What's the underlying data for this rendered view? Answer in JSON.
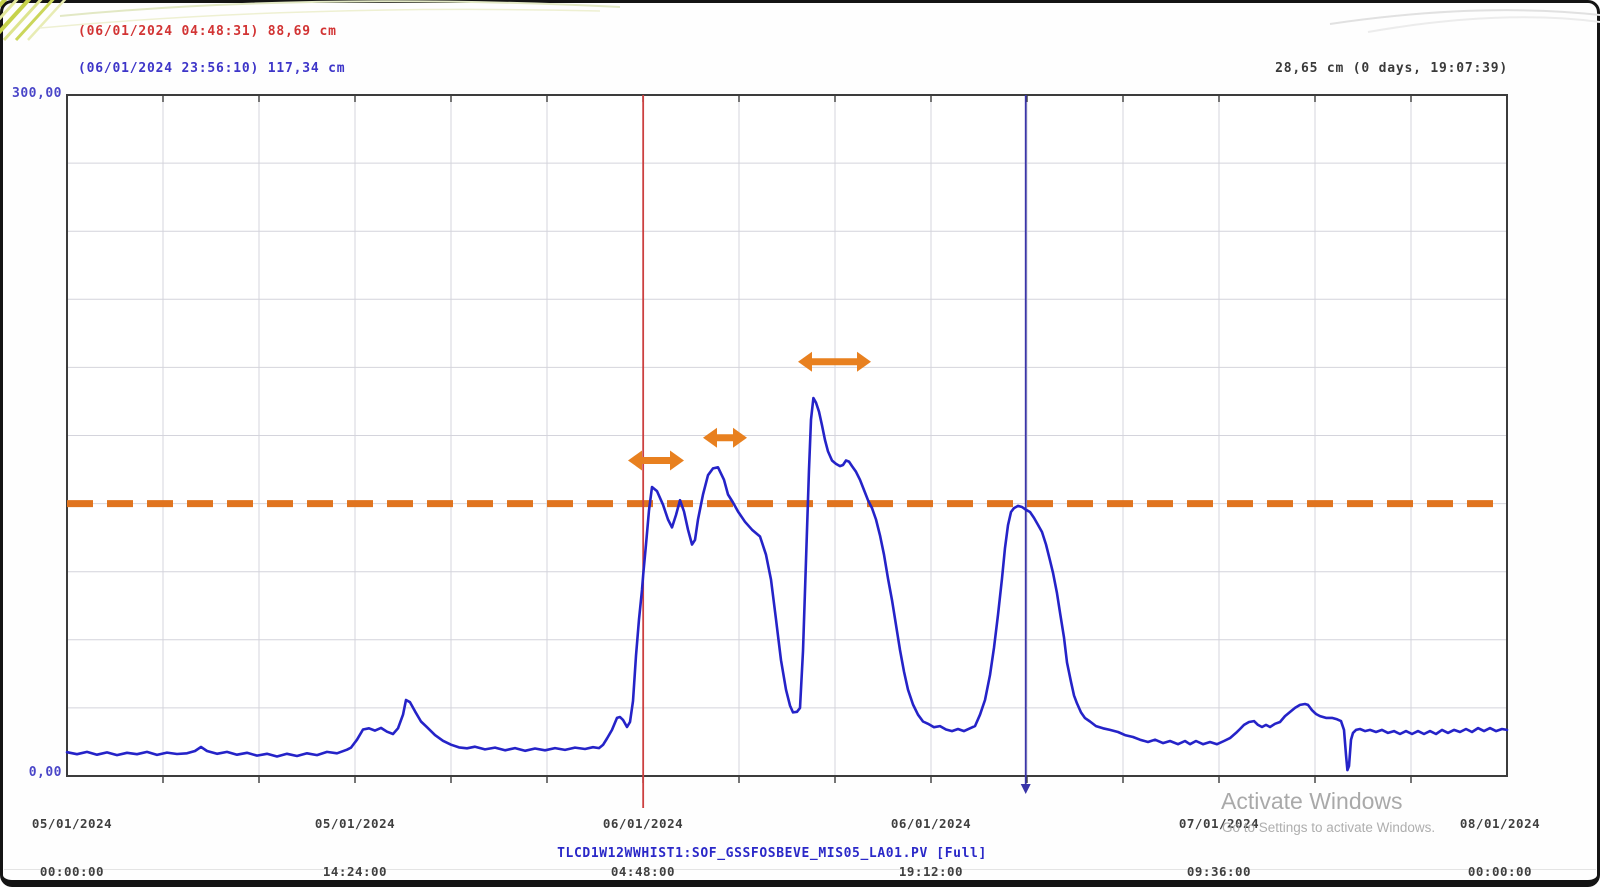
{
  "readouts": {
    "red_cursor": "(06/01/2024 04:48:31) 88,69 cm",
    "blue_cursor": "(06/01/2024 23:56:10) 117,34 cm",
    "delta": "28,65 cm (0 days, 19:07:39)"
  },
  "tag_label": "TLCD1W12WWHIST1:SOF_GSSFOSBEVE_MIS05_LA01.PV [Full]",
  "watermark": {
    "line1": "Activate Windows",
    "line2": "Go to Settings to activate Windows."
  },
  "chart_data": {
    "type": "line",
    "title": "",
    "xlabel": "",
    "ylabel": "cm",
    "y_axis": {
      "min": 0,
      "max": 300,
      "min_label": "0,00",
      "max_label": "300,00",
      "unit": "cm",
      "grid_step": 30
    },
    "x_axis": {
      "span_hours": 72,
      "start": "05/01/2024 00:00:00",
      "end": "08/01/2024 00:00:00",
      "tick_interval_hours": 14.4,
      "ticks": [
        {
          "date": "05/01/2024",
          "time": "00:00:00"
        },
        {
          "date": "05/01/2024",
          "time": "14:24:00"
        },
        {
          "date": "06/01/2024",
          "time": "04:48:00"
        },
        {
          "date": "06/01/2024",
          "time": "19:12:00"
        },
        {
          "date": "07/01/2024",
          "time": "09:36:00"
        },
        {
          "date": "08/01/2024",
          "time": "00:00:00"
        }
      ]
    },
    "grid": {
      "v_divisions": 15,
      "h_divisions": 10,
      "color": "#d4d4dc",
      "border_color": "#3c3c3c"
    },
    "threshold_line": {
      "value": 120,
      "color": "#e0741f",
      "style": "dashed"
    },
    "cursors": [
      {
        "name": "red-cursor",
        "timestamp": "06/01/2024 04:48:31",
        "time_hours": 28.8086,
        "value_cm": 88.69,
        "color": "#cc4040"
      },
      {
        "name": "blue-cursor",
        "timestamp": "06/01/2024 23:56:10",
        "time_hours": 47.9361,
        "value_cm": 117.34,
        "color": "#3a35a8"
      }
    ],
    "delta": {
      "value_cm": 28.65,
      "duration": "0 days, 19:07:39"
    },
    "arrows": [
      {
        "t_start": 28.05,
        "t_end": 30.85,
        "value": 139,
        "color": "#e8801f"
      },
      {
        "t_start": 31.8,
        "t_end": 34.0,
        "value": 149,
        "color": "#e8801f"
      },
      {
        "t_start": 36.55,
        "t_end": 40.2,
        "value": 182.5,
        "color": "#e8801f"
      }
    ],
    "series": [
      {
        "name": "SOF_GSSFOSBEVE_MIS05_LA01.PV",
        "color": "#2523c8",
        "points": [
          [
            0,
            10.5
          ],
          [
            0.5,
            9.6
          ],
          [
            1,
            10.6
          ],
          [
            1.5,
            9.4
          ],
          [
            2,
            10.4
          ],
          [
            2.5,
            9.2
          ],
          [
            3,
            10.2
          ],
          [
            3.5,
            9.6
          ],
          [
            4,
            10.6
          ],
          [
            4.5,
            9.3
          ],
          [
            5,
            10.3
          ],
          [
            5.5,
            9.7
          ],
          [
            6,
            10
          ],
          [
            6.4,
            11
          ],
          [
            6.7,
            12.8
          ],
          [
            7,
            11
          ],
          [
            7.5,
            9.8
          ],
          [
            8,
            10.6
          ],
          [
            8.5,
            9.4
          ],
          [
            9,
            10.2
          ],
          [
            9.5,
            9
          ],
          [
            10,
            9.8
          ],
          [
            10.5,
            8.6
          ],
          [
            11,
            9.8
          ],
          [
            11.5,
            8.8
          ],
          [
            12,
            10
          ],
          [
            12.5,
            9.2
          ],
          [
            13,
            10.6
          ],
          [
            13.5,
            10
          ],
          [
            14,
            11.6
          ],
          [
            14.2,
            12.5
          ],
          [
            14.5,
            16
          ],
          [
            14.8,
            20.5
          ],
          [
            15.1,
            21
          ],
          [
            15.4,
            20
          ],
          [
            15.7,
            21.2
          ],
          [
            16,
            19.5
          ],
          [
            16.3,
            18.5
          ],
          [
            16.55,
            21
          ],
          [
            16.8,
            27
          ],
          [
            16.95,
            33.5
          ],
          [
            17.15,
            32.5
          ],
          [
            17.4,
            28.5
          ],
          [
            17.7,
            24
          ],
          [
            18,
            21.5
          ],
          [
            18.4,
            18
          ],
          [
            18.8,
            15.5
          ],
          [
            19.2,
            13.8
          ],
          [
            19.6,
            12.6
          ],
          [
            20,
            12.2
          ],
          [
            20.4,
            12.9
          ],
          [
            20.9,
            11.7
          ],
          [
            21.4,
            12.5
          ],
          [
            21.9,
            11.3
          ],
          [
            22.4,
            12.3
          ],
          [
            22.9,
            11.1
          ],
          [
            23.4,
            12.1
          ],
          [
            23.9,
            11.3
          ],
          [
            24.4,
            12.3
          ],
          [
            24.9,
            11.5
          ],
          [
            25.4,
            12.5
          ],
          [
            25.9,
            11.9
          ],
          [
            26.3,
            12.7
          ],
          [
            26.6,
            12.3
          ],
          [
            26.8,
            13.7
          ],
          [
            27,
            16.5
          ],
          [
            27.25,
            20.3
          ],
          [
            27.5,
            25.6
          ],
          [
            27.65,
            26
          ],
          [
            27.8,
            24.7
          ],
          [
            28,
            21.6
          ],
          [
            28.15,
            23.8
          ],
          [
            28.3,
            33
          ],
          [
            28.45,
            53
          ],
          [
            28.6,
            69
          ],
          [
            28.75,
            82
          ],
          [
            28.81,
            88.7
          ],
          [
            28.95,
            102
          ],
          [
            29.1,
            117
          ],
          [
            29.25,
            127.3
          ],
          [
            29.5,
            125.5
          ],
          [
            29.8,
            119.5
          ],
          [
            30.05,
            113
          ],
          [
            30.25,
            109.5
          ],
          [
            30.45,
            115
          ],
          [
            30.65,
            121.5
          ],
          [
            30.85,
            116.5
          ],
          [
            31.05,
            108.5
          ],
          [
            31.25,
            102
          ],
          [
            31.4,
            104
          ],
          [
            31.55,
            113
          ],
          [
            31.8,
            124
          ],
          [
            32.05,
            132.5
          ],
          [
            32.3,
            135.5
          ],
          [
            32.55,
            136
          ],
          [
            32.85,
            130.5
          ],
          [
            33.05,
            124
          ],
          [
            33.3,
            120.5
          ],
          [
            33.55,
            116.5
          ],
          [
            33.9,
            112
          ],
          [
            34.25,
            108.5
          ],
          [
            34.65,
            105.5
          ],
          [
            34.95,
            97.5
          ],
          [
            35.2,
            86.5
          ],
          [
            35.45,
            69
          ],
          [
            35.7,
            51
          ],
          [
            35.95,
            38
          ],
          [
            36.15,
            31
          ],
          [
            36.3,
            28
          ],
          [
            36.5,
            28.3
          ],
          [
            36.65,
            30
          ],
          [
            36.8,
            55
          ],
          [
            36.95,
            95
          ],
          [
            37.1,
            135
          ],
          [
            37.2,
            157
          ],
          [
            37.32,
            166.5
          ],
          [
            37.45,
            164.5
          ],
          [
            37.6,
            160.5
          ],
          [
            37.75,
            154.5
          ],
          [
            37.9,
            148
          ],
          [
            38.05,
            143
          ],
          [
            38.25,
            139
          ],
          [
            38.45,
            137.5
          ],
          [
            38.65,
            136.5
          ],
          [
            38.8,
            137
          ],
          [
            38.95,
            139
          ],
          [
            39.1,
            138.5
          ],
          [
            39.25,
            136.5
          ],
          [
            39.45,
            134
          ],
          [
            39.65,
            130.5
          ],
          [
            39.85,
            126
          ],
          [
            40.05,
            121.5
          ],
          [
            40.25,
            118
          ],
          [
            40.45,
            113
          ],
          [
            40.65,
            106
          ],
          [
            40.85,
            97.5
          ],
          [
            41.05,
            87
          ],
          [
            41.25,
            77.5
          ],
          [
            41.45,
            66.5
          ],
          [
            41.65,
            55.5
          ],
          [
            41.85,
            46
          ],
          [
            42.05,
            38
          ],
          [
            42.3,
            31.5
          ],
          [
            42.55,
            27
          ],
          [
            42.8,
            24
          ],
          [
            43.05,
            23
          ],
          [
            43.35,
            21.5
          ],
          [
            43.65,
            22
          ],
          [
            43.95,
            20.5
          ],
          [
            44.25,
            19.8
          ],
          [
            44.55,
            20.7
          ],
          [
            44.85,
            19.8
          ],
          [
            45.15,
            21
          ],
          [
            45.4,
            22
          ],
          [
            45.65,
            27
          ],
          [
            45.9,
            33.5
          ],
          [
            46.15,
            44.5
          ],
          [
            46.35,
            56.5
          ],
          [
            46.55,
            71
          ],
          [
            46.75,
            87
          ],
          [
            46.9,
            100.5
          ],
          [
            47.05,
            110.5
          ],
          [
            47.2,
            116.3
          ],
          [
            47.35,
            118
          ],
          [
            47.55,
            119
          ],
          [
            47.75,
            118.5
          ],
          [
            47.94,
            117.3
          ],
          [
            48.15,
            116.3
          ],
          [
            48.35,
            113.7
          ],
          [
            48.55,
            110.6
          ],
          [
            48.75,
            107.5
          ],
          [
            48.95,
            102
          ],
          [
            49.15,
            95
          ],
          [
            49.3,
            89.5
          ],
          [
            49.5,
            80.5
          ],
          [
            49.65,
            72
          ],
          [
            49.85,
            61
          ],
          [
            50,
            50
          ],
          [
            50.2,
            41.5
          ],
          [
            50.35,
            35.5
          ],
          [
            50.5,
            32
          ],
          [
            50.7,
            28
          ],
          [
            50.9,
            25.5
          ],
          [
            51.15,
            24
          ],
          [
            51.45,
            22
          ],
          [
            51.8,
            21
          ],
          [
            52.15,
            20.3
          ],
          [
            52.55,
            19.4
          ],
          [
            52.9,
            18
          ],
          [
            53.3,
            17.2
          ],
          [
            53.65,
            16
          ],
          [
            54.05,
            15
          ],
          [
            54.4,
            16
          ],
          [
            54.8,
            14.5
          ],
          [
            55.15,
            15.4
          ],
          [
            55.55,
            14
          ],
          [
            55.9,
            15.4
          ],
          [
            56.15,
            14
          ],
          [
            56.45,
            15.4
          ],
          [
            56.8,
            14
          ],
          [
            57.15,
            15
          ],
          [
            57.5,
            14
          ],
          [
            57.85,
            15.4
          ],
          [
            58.15,
            16.7
          ],
          [
            58.45,
            19
          ],
          [
            58.65,
            20.7
          ],
          [
            58.85,
            22.5
          ],
          [
            59.1,
            23.8
          ],
          [
            59.35,
            24.2
          ],
          [
            59.55,
            22.5
          ],
          [
            59.75,
            21.6
          ],
          [
            59.95,
            22.5
          ],
          [
            60.15,
            21.6
          ],
          [
            60.4,
            23
          ],
          [
            60.65,
            23.8
          ],
          [
            60.9,
            26.4
          ],
          [
            61.15,
            28.2
          ],
          [
            61.4,
            30
          ],
          [
            61.65,
            31.3
          ],
          [
            61.9,
            31.7
          ],
          [
            62.05,
            31.3
          ],
          [
            62.25,
            29
          ],
          [
            62.45,
            27.3
          ],
          [
            62.65,
            26.4
          ],
          [
            62.95,
            25.6
          ],
          [
            63.25,
            25.6
          ],
          [
            63.5,
            25
          ],
          [
            63.7,
            24.2
          ],
          [
            63.85,
            20.3
          ],
          [
            63.95,
            9.3
          ],
          [
            64.02,
            2.6
          ],
          [
            64.1,
            4.4
          ],
          [
            64.2,
            16
          ],
          [
            64.3,
            19
          ],
          [
            64.45,
            20.3
          ],
          [
            64.65,
            20.7
          ],
          [
            64.9,
            19.8
          ],
          [
            65.15,
            20.3
          ],
          [
            65.45,
            19.4
          ],
          [
            65.75,
            20.3
          ],
          [
            66.05,
            19
          ],
          [
            66.35,
            19.8
          ],
          [
            66.65,
            18.5
          ],
          [
            66.95,
            19.8
          ],
          [
            67.25,
            18.5
          ],
          [
            67.55,
            19.8
          ],
          [
            67.85,
            18.5
          ],
          [
            68.15,
            19.8
          ],
          [
            68.45,
            18.5
          ],
          [
            68.75,
            20.3
          ],
          [
            69.05,
            19
          ],
          [
            69.35,
            20.3
          ],
          [
            69.65,
            19.4
          ],
          [
            69.95,
            20.7
          ],
          [
            70.25,
            19.4
          ],
          [
            70.55,
            21.1
          ],
          [
            70.85,
            19.8
          ],
          [
            71.15,
            21.1
          ],
          [
            71.45,
            19.8
          ],
          [
            71.75,
            20.7
          ],
          [
            72,
            20.3
          ]
        ]
      }
    ]
  }
}
